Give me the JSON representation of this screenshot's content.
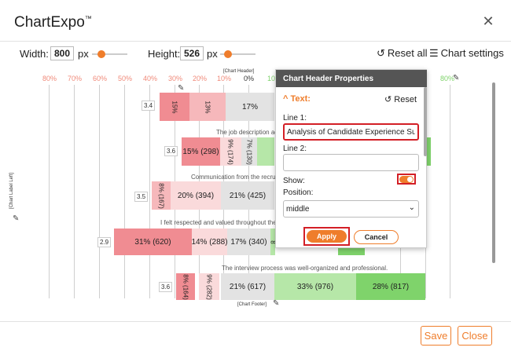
{
  "app": {
    "title": "ChartExpo",
    "tm": "™"
  },
  "controls": {
    "width_label": "Width:",
    "width_value": "800",
    "width_unit": "px",
    "height_label": "Height:",
    "height_value": "526",
    "height_unit": "px",
    "reset_all": "Reset all",
    "chart_settings": "Chart settings"
  },
  "chart": {
    "percent_ticks": [
      "80%",
      "70%",
      "60%",
      "50%",
      "40%",
      "30%",
      "20%",
      "10%",
      "0%",
      "10",
      "80%"
    ],
    "header_placeholder": "[Chart Header]",
    "footer_placeholder": "[Chart Footer]",
    "left_label_placeholder": "[Chart Label Left]",
    "questions": [
      "The job description ac",
      "Communication from the recruit",
      "I felt respected and valued throughout the",
      "The interview process was well-organized and professional."
    ],
    "scores": [
      "3.4",
      "3.6",
      "3.5",
      "2.9",
      "3.6"
    ],
    "rows": [
      {
        "segments": [
          "15%",
          "13%",
          "17%"
        ]
      },
      {
        "segments": [
          "15% (298)",
          "9% (174)",
          "7% (130)"
        ]
      },
      {
        "segments": [
          "8% (167)",
          "20% (394)",
          "21% (425)"
        ]
      },
      {
        "segments": [
          "31% (620)",
          "14% (288)",
          "17% (340)",
          "8"
        ]
      },
      {
        "segments": [
          "8% (164)",
          "9% (282)",
          "21% (617)",
          "33% (976)",
          "28% (817)"
        ]
      }
    ],
    "colors": {
      "strong_neg": "#f08c92",
      "neg": "#f6b8bb",
      "light_neg": "#fadadb",
      "neutral": "#e3e3e3",
      "pos": "#b6e7a8",
      "strong_pos": "#7fd36b",
      "grid": "#cfcfcf",
      "tick_text": "#f08a7a"
    }
  },
  "panel": {
    "title": "Chart Header Properties",
    "section": "Text:",
    "reset": "Reset",
    "line1_label": "Line 1:",
    "line1_value": "Analysis of Candidate Experience Surve",
    "line2_label": "Line 2:",
    "line2_value": "",
    "show_label": "Show:",
    "show_on": true,
    "position_label": "Position:",
    "position_value": "middle",
    "apply": "Apply",
    "cancel": "Cancel"
  },
  "footer": {
    "save": "Save",
    "close": "Close"
  },
  "accent": "#ef7d2b",
  "highlight": "#d31f26"
}
